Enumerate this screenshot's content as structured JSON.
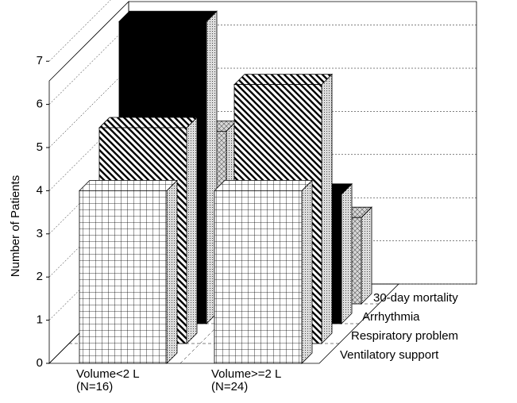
{
  "chart_data": {
    "type": "bar3d",
    "y_label": "Number of Patients",
    "categories": [
      "Volume<2 L\n(N=16)",
      "Volume>=2 L\n(N=24)"
    ],
    "series": [
      {
        "name": "Ventilatory support",
        "color": "#ffffff",
        "values": [
          4,
          4
        ]
      },
      {
        "name": "Respiratory problem",
        "color": "#ffffff",
        "values": [
          5,
          6
        ]
      },
      {
        "name": "Arrhythmia",
        "color": "#000000",
        "values": [
          7,
          3
        ]
      },
      {
        "name": "30-day mortality",
        "color": "#d0d0d0",
        "values": [
          4,
          2
        ]
      }
    ],
    "ylim": [
      0,
      7
    ],
    "yticks": [
      0,
      1,
      2,
      3,
      4,
      5,
      6,
      7
    ],
    "grid": true
  }
}
